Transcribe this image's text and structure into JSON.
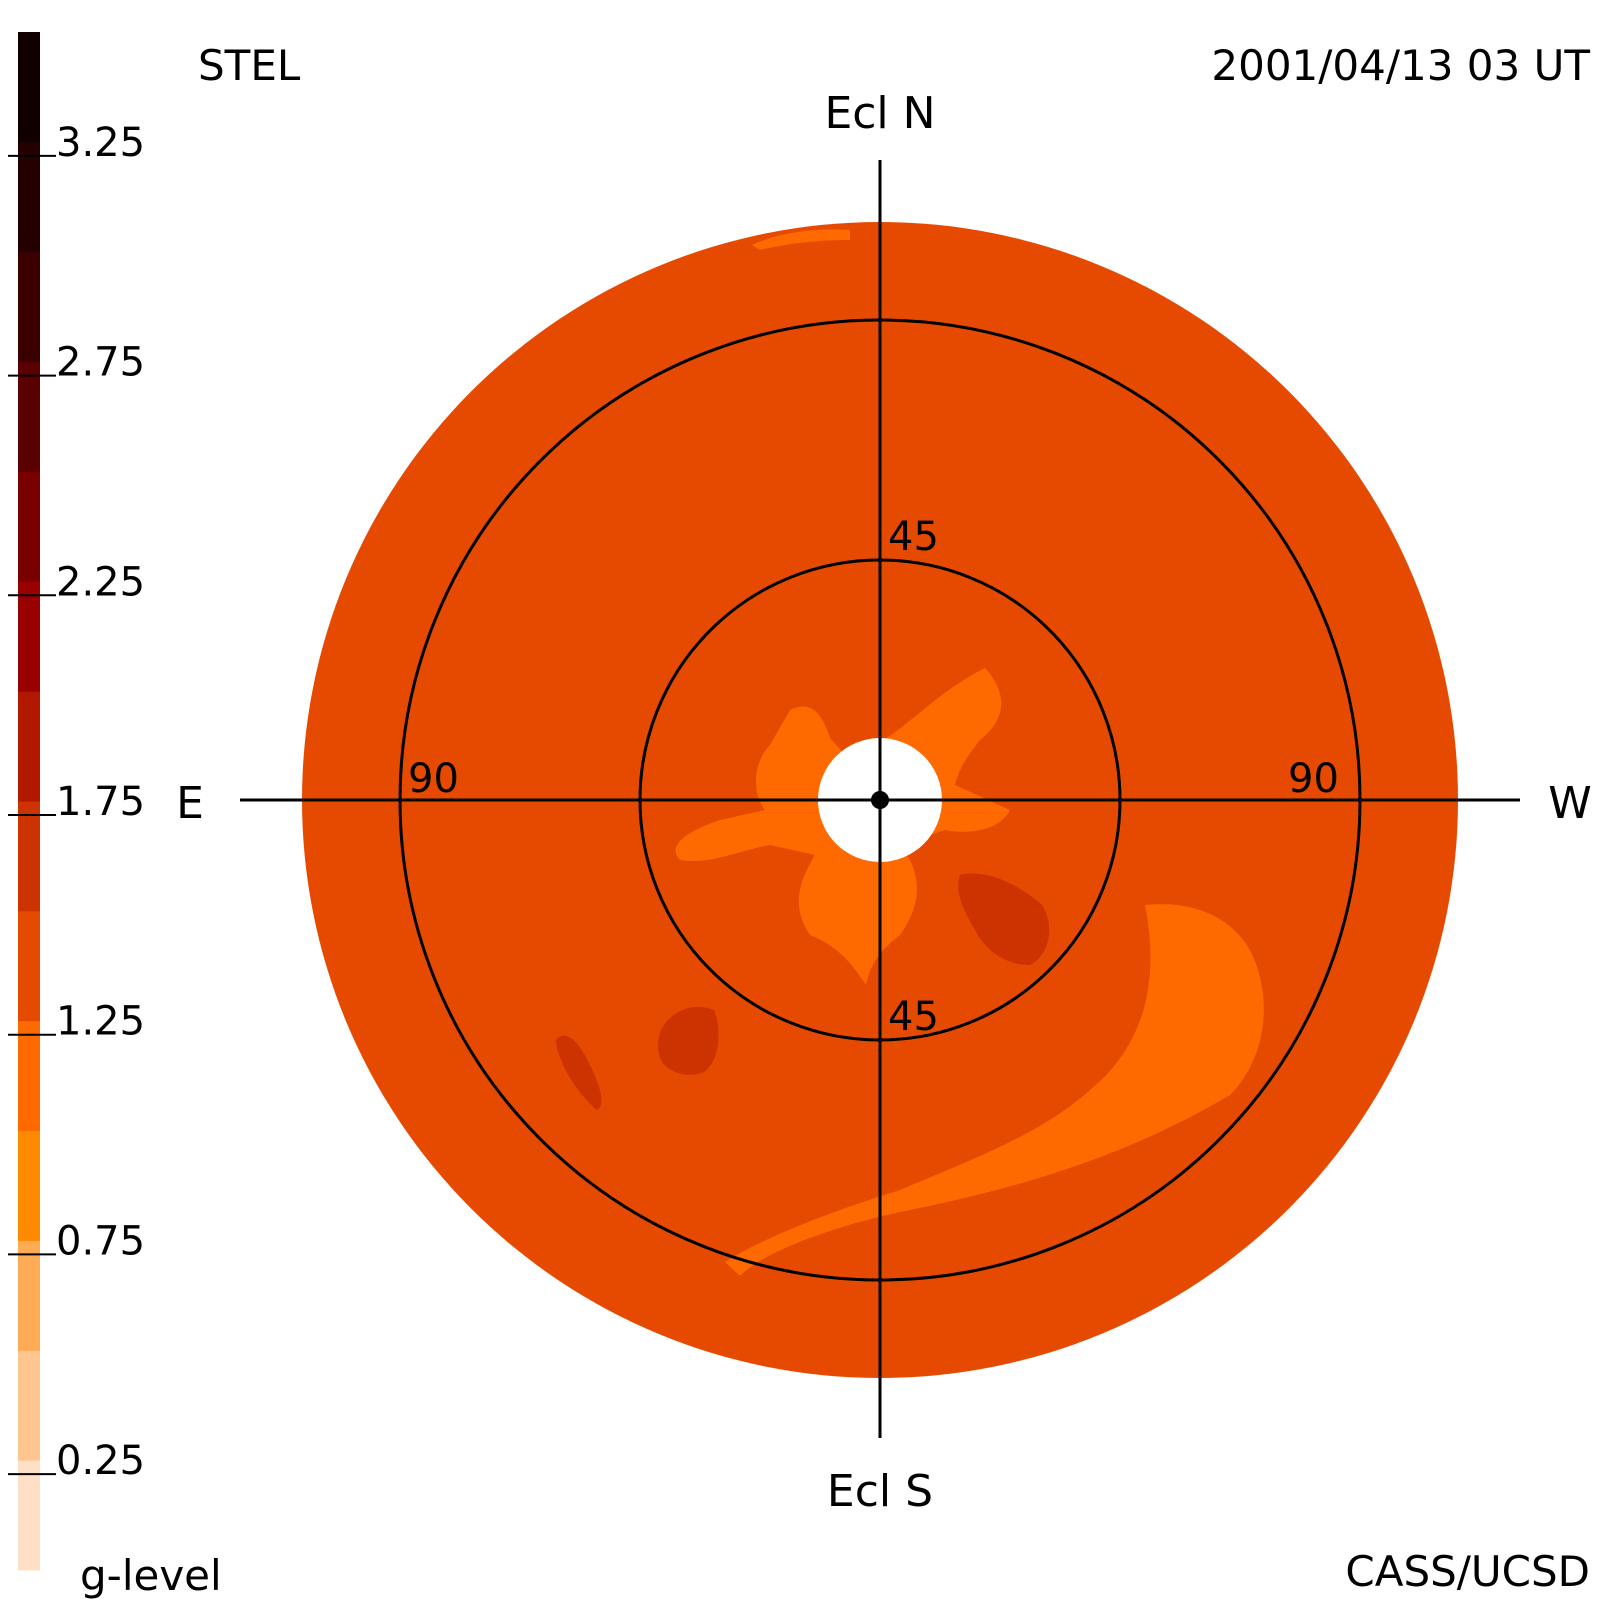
{
  "header": {
    "observatory": "STEL",
    "timestamp": "2001/04/13 03 UT"
  },
  "footer": {
    "colorbar_label": "g-level",
    "credit": "CASS/UCSD"
  },
  "directions": {
    "north": "Ecl N",
    "south": "Ecl S",
    "east": "E",
    "west": "W"
  },
  "rings": {
    "inner_north_label": "45",
    "inner_south_label": "45",
    "outer_east_label": "90",
    "outer_west_label": "90"
  },
  "colorbar": {
    "tick_labels": [
      "3.25",
      "2.75",
      "2.25",
      "1.75",
      "1.25",
      "0.75",
      "0.25"
    ],
    "tick_values": [
      3.25,
      2.75,
      2.25,
      1.75,
      1.25,
      0.75,
      0.25
    ],
    "range": [
      0,
      3.5
    ],
    "segment_colors": [
      "#ffe0c6",
      "#ffc68f",
      "#ffaa55",
      "#ff8a00",
      "#ff6a00",
      "#e64a00",
      "#cc3300",
      "#b21800",
      "#990000",
      "#7a0000",
      "#5a0000",
      "#3a0000",
      "#240000",
      "#120000"
    ]
  },
  "map": {
    "background_color": "#e64a00",
    "patch_color_medium": "#ff6a00",
    "patch_color_dark": "#cc3300",
    "sun_color": "#ffffff"
  },
  "colors": {
    "line": "#000000",
    "background": "#ffffff"
  }
}
